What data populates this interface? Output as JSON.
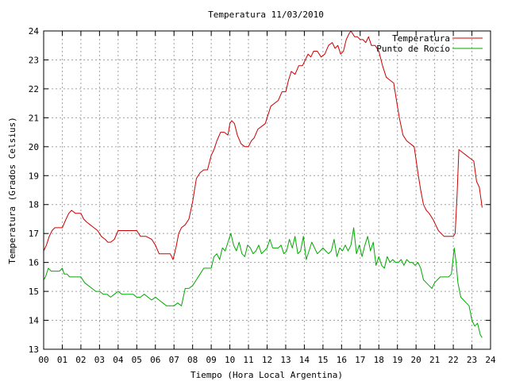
{
  "chart_data": {
    "type": "line",
    "title": "Temperatura 11/03/2010",
    "xlabel": "Tiempo (Hora Local Argentina)",
    "ylabel": "Temperatura (Grados Celsius)",
    "xlim": [
      0,
      24
    ],
    "ylim": [
      13,
      24
    ],
    "x_ticks": [
      "00",
      "01",
      "02",
      "03",
      "04",
      "05",
      "06",
      "07",
      "08",
      "09",
      "10",
      "11",
      "12",
      "13",
      "14",
      "15",
      "16",
      "17",
      "18",
      "19",
      "20",
      "21",
      "22",
      "23",
      "24"
    ],
    "y_ticks": [
      "13",
      "14",
      "15",
      "16",
      "17",
      "18",
      "19",
      "20",
      "21",
      "22",
      "23",
      "24"
    ],
    "grid": true,
    "legend_position": "top-right",
    "series": [
      {
        "name": "Temperatura",
        "color": "#cc0000",
        "x": [
          0.0,
          0.15,
          0.3,
          0.45,
          0.6,
          0.8,
          1.0,
          1.2,
          1.35,
          1.5,
          1.7,
          1.85,
          2.0,
          2.15,
          2.3,
          2.5,
          2.7,
          2.9,
          3.1,
          3.3,
          3.45,
          3.6,
          3.8,
          4.0,
          4.2,
          4.5,
          4.8,
          5.0,
          5.2,
          5.5,
          5.8,
          6.0,
          6.2,
          6.5,
          6.8,
          6.95,
          7.1,
          7.25,
          7.4,
          7.6,
          7.8,
          8.0,
          8.2,
          8.4,
          8.6,
          8.8,
          9.0,
          9.15,
          9.3,
          9.5,
          9.7,
          9.9,
          10.0,
          10.1,
          10.25,
          10.4,
          10.6,
          10.8,
          11.0,
          11.15,
          11.3,
          11.5,
          11.7,
          11.9,
          12.05,
          12.2,
          12.4,
          12.6,
          12.8,
          13.0,
          13.15,
          13.3,
          13.5,
          13.7,
          13.9,
          14.05,
          14.2,
          14.35,
          14.5,
          14.7,
          14.9,
          15.1,
          15.3,
          15.5,
          15.65,
          15.8,
          15.95,
          16.1,
          16.25,
          16.4,
          16.5,
          16.6,
          16.7,
          16.85,
          17.0,
          17.15,
          17.3,
          17.45,
          17.6,
          17.8,
          18.0,
          18.2,
          18.4,
          18.6,
          18.8,
          18.95,
          19.1,
          19.3,
          19.5,
          19.7,
          19.9,
          20.1,
          20.25,
          20.4,
          20.55,
          20.7,
          20.9,
          21.05,
          21.2,
          21.35,
          21.5,
          21.7,
          21.85,
          22.0,
          22.1,
          22.2,
          22.3,
          22.5,
          22.7,
          22.9,
          23.1,
          23.25,
          23.4,
          23.55
        ],
        "values": [
          16.4,
          16.6,
          16.9,
          17.1,
          17.2,
          17.2,
          17.2,
          17.5,
          17.7,
          17.8,
          17.7,
          17.7,
          17.7,
          17.5,
          17.4,
          17.3,
          17.2,
          17.1,
          16.9,
          16.8,
          16.7,
          16.7,
          16.8,
          17.1,
          17.1,
          17.1,
          17.1,
          17.1,
          16.9,
          16.9,
          16.8,
          16.6,
          16.3,
          16.3,
          16.3,
          16.1,
          16.5,
          17.0,
          17.2,
          17.3,
          17.5,
          18.1,
          18.9,
          19.1,
          19.2,
          19.2,
          19.7,
          19.9,
          20.2,
          20.5,
          20.5,
          20.4,
          20.8,
          20.9,
          20.8,
          20.4,
          20.1,
          20.0,
          20.0,
          20.2,
          20.3,
          20.6,
          20.7,
          20.8,
          21.1,
          21.4,
          21.5,
          21.6,
          21.9,
          21.9,
          22.3,
          22.6,
          22.5,
          22.8,
          22.8,
          23.0,
          23.2,
          23.1,
          23.3,
          23.3,
          23.1,
          23.2,
          23.5,
          23.6,
          23.4,
          23.5,
          23.2,
          23.3,
          23.7,
          23.9,
          24.0,
          23.9,
          23.8,
          23.8,
          23.7,
          23.7,
          23.6,
          23.8,
          23.5,
          23.5,
          23.3,
          22.8,
          22.4,
          22.3,
          22.2,
          21.6,
          21.0,
          20.4,
          20.2,
          20.1,
          20.0,
          19.1,
          18.5,
          18.0,
          17.8,
          17.7,
          17.5,
          17.3,
          17.1,
          17.0,
          16.9,
          16.9,
          16.9,
          16.9,
          17.0,
          18.3,
          19.9,
          19.8,
          19.7,
          19.6,
          19.5,
          18.8,
          18.6,
          17.9
        ]
      },
      {
        "name": "Punto de Rocío",
        "color": "#00aa00",
        "x": [
          0.0,
          0.1,
          0.25,
          0.4,
          0.55,
          0.7,
          0.85,
          1.0,
          1.1,
          1.25,
          1.4,
          1.55,
          1.7,
          1.85,
          2.0,
          2.2,
          2.4,
          2.6,
          2.8,
          3.0,
          3.2,
          3.4,
          3.6,
          3.8,
          4.0,
          4.2,
          4.4,
          4.6,
          4.8,
          5.0,
          5.2,
          5.4,
          5.6,
          5.8,
          6.0,
          6.2,
          6.4,
          6.6,
          6.8,
          7.0,
          7.2,
          7.4,
          7.6,
          7.8,
          8.0,
          8.2,
          8.4,
          8.6,
          8.8,
          9.0,
          9.15,
          9.3,
          9.45,
          9.6,
          9.75,
          9.9,
          10.05,
          10.2,
          10.35,
          10.5,
          10.65,
          10.8,
          10.95,
          11.1,
          11.25,
          11.4,
          11.55,
          11.7,
          11.85,
          12.0,
          12.15,
          12.3,
          12.45,
          12.6,
          12.75,
          12.9,
          13.05,
          13.2,
          13.35,
          13.5,
          13.65,
          13.8,
          13.95,
          14.1,
          14.25,
          14.4,
          14.55,
          14.7,
          14.85,
          15.0,
          15.15,
          15.3,
          15.45,
          15.6,
          15.75,
          15.9,
          16.05,
          16.2,
          16.35,
          16.5,
          16.65,
          16.8,
          16.95,
          17.1,
          17.25,
          17.4,
          17.55,
          17.7,
          17.85,
          18.0,
          18.15,
          18.3,
          18.45,
          18.6,
          18.75,
          18.9,
          19.05,
          19.2,
          19.35,
          19.5,
          19.65,
          19.8,
          19.95,
          20.1,
          20.25,
          20.4,
          20.55,
          20.7,
          20.85,
          21.0,
          21.15,
          21.3,
          21.45,
          21.6,
          21.75,
          21.9,
          22.05,
          22.15,
          22.25,
          22.4,
          22.55,
          22.7,
          22.85,
          23.0,
          23.15,
          23.3,
          23.45,
          23.55
        ],
        "values": [
          15.4,
          15.5,
          15.8,
          15.7,
          15.7,
          15.7,
          15.7,
          15.8,
          15.6,
          15.6,
          15.5,
          15.5,
          15.5,
          15.5,
          15.5,
          15.3,
          15.2,
          15.1,
          15.0,
          15.0,
          14.9,
          14.9,
          14.8,
          14.9,
          15.0,
          14.9,
          14.9,
          14.9,
          14.9,
          14.8,
          14.8,
          14.9,
          14.8,
          14.7,
          14.8,
          14.7,
          14.6,
          14.5,
          14.5,
          14.5,
          14.6,
          14.5,
          15.1,
          15.1,
          15.2,
          15.4,
          15.6,
          15.8,
          15.8,
          15.8,
          16.2,
          16.3,
          16.1,
          16.5,
          16.4,
          16.7,
          17.0,
          16.6,
          16.4,
          16.7,
          16.3,
          16.2,
          16.6,
          16.5,
          16.3,
          16.4,
          16.6,
          16.3,
          16.4,
          16.5,
          16.8,
          16.5,
          16.5,
          16.5,
          16.6,
          16.3,
          16.4,
          16.8,
          16.5,
          16.9,
          16.3,
          16.4,
          16.9,
          16.1,
          16.4,
          16.7,
          16.5,
          16.3,
          16.4,
          16.5,
          16.4,
          16.3,
          16.4,
          16.8,
          16.2,
          16.5,
          16.4,
          16.6,
          16.4,
          16.6,
          17.2,
          16.3,
          16.6,
          16.2,
          16.6,
          16.9,
          16.4,
          16.7,
          15.9,
          16.2,
          15.9,
          15.8,
          16.2,
          16.0,
          16.1,
          16.0,
          16.0,
          16.1,
          15.9,
          16.1,
          16.0,
          16.0,
          15.9,
          16.0,
          15.8,
          15.4,
          15.3,
          15.2,
          15.1,
          15.3,
          15.4,
          15.5,
          15.5,
          15.5,
          15.5,
          15.6,
          16.5,
          16.0,
          15.3,
          14.8,
          14.7,
          14.6,
          14.5,
          14.0,
          13.8,
          13.9,
          13.5,
          13.4
        ]
      }
    ]
  }
}
